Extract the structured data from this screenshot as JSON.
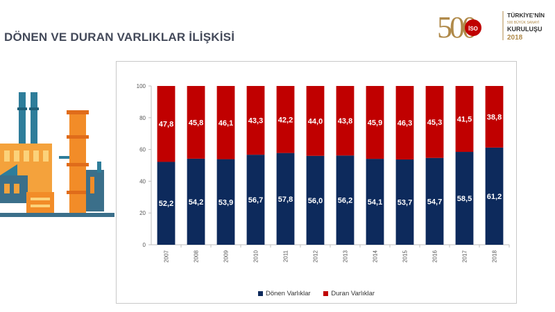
{
  "page": {
    "title": "DÖNEN VE DURAN VARLIKLAR İLİŞKİSİ"
  },
  "logo": {
    "number": "500",
    "badge": "İSO",
    "line1": "TÜRKİYE'NİN",
    "line2": "500 BÜYÜK SANAYİ",
    "line3": "KURULUŞU",
    "year": "2018"
  },
  "illustration": {
    "icon": "factory-illustration-icon"
  },
  "colors": {
    "donen": "#0d2a5c",
    "duran": "#c00000",
    "title": "#444a5a",
    "gold": "#b08a4a"
  },
  "chart_data": {
    "type": "bar",
    "stacked": true,
    "categories": [
      "2007",
      "2008",
      "2009",
      "2010",
      "2011",
      "2012",
      "2013",
      "2014",
      "2015",
      "2016",
      "2017",
      "2018"
    ],
    "series": [
      {
        "name": "Dönen Varlıklar",
        "values": [
          52.2,
          54.2,
          53.9,
          56.7,
          57.8,
          56.0,
          56.2,
          54.1,
          53.7,
          54.7,
          58.5,
          61.2
        ],
        "labels": [
          "52,2",
          "54,2",
          "53,9",
          "56,7",
          "57,8",
          "56,0",
          "56,2",
          "54,1",
          "53,7",
          "54,7",
          "58,5",
          "61,2"
        ]
      },
      {
        "name": "Duran Varlıklar",
        "values": [
          47.8,
          45.8,
          46.1,
          43.3,
          42.2,
          44.0,
          43.8,
          45.9,
          46.3,
          45.3,
          41.5,
          38.8
        ],
        "labels": [
          "47,8",
          "45,8",
          "46,1",
          "43,3",
          "42,2",
          "44,0",
          "43,8",
          "45,9",
          "46,3",
          "45,3",
          "41,5",
          "38,8"
        ]
      }
    ],
    "ylim": [
      0,
      100
    ],
    "yticks": [
      "0",
      "20",
      "40",
      "60",
      "80",
      "100"
    ],
    "legend": "bottom",
    "grid": false
  }
}
